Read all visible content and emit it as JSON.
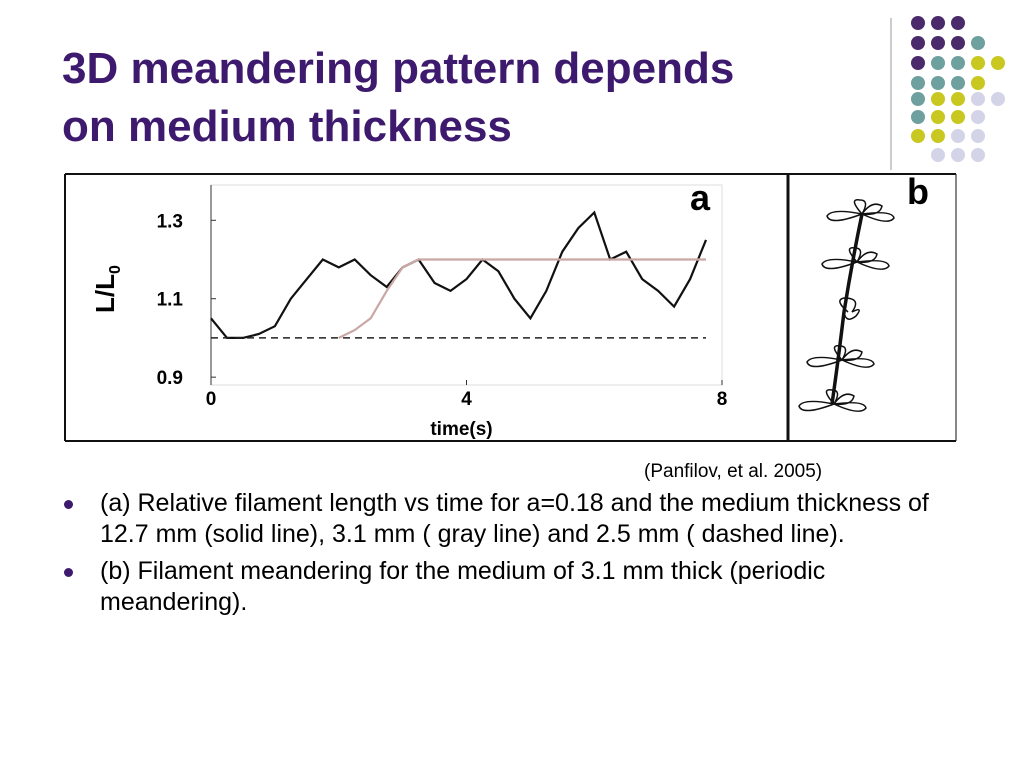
{
  "title_lines": [
    "3D meandering pattern depends",
    "on medium thickness"
  ],
  "chart_data": {
    "type": "line",
    "panel_label": "a",
    "x_label": "time(s)",
    "y_label": {
      "text": "L/L",
      "sub": "0"
    },
    "x": [
      0,
      0.25,
      0.5,
      0.75,
      1,
      1.25,
      1.5,
      1.75,
      2,
      2.25,
      2.5,
      2.75,
      3,
      3.25,
      3.5,
      3.75,
      4,
      4.25,
      4.5,
      4.75,
      5,
      5.25,
      5.5,
      5.75,
      6,
      6.25,
      6.5,
      6.75,
      7,
      7.25,
      7.5,
      7.75
    ],
    "series": [
      {
        "name": "solid",
        "color": "#111111",
        "dash": false,
        "values": [
          1.05,
          1.0,
          1.0,
          1.01,
          1.03,
          1.1,
          1.15,
          1.2,
          1.18,
          1.2,
          1.16,
          1.13,
          1.18,
          1.2,
          1.14,
          1.12,
          1.15,
          1.2,
          1.17,
          1.1,
          1.05,
          1.12,
          1.22,
          1.28,
          1.32,
          1.2,
          1.22,
          1.15,
          1.12,
          1.08,
          1.15,
          1.25
        ]
      },
      {
        "name": "gray",
        "color": "#c9a7a4",
        "dash": false,
        "values": [
          null,
          null,
          null,
          null,
          null,
          null,
          null,
          null,
          1.0,
          1.02,
          1.05,
          1.12,
          1.18,
          1.2,
          1.2,
          1.2,
          1.2,
          1.2,
          1.2,
          1.2,
          1.2,
          1.2,
          1.2,
          1.2,
          1.2,
          1.2,
          1.2,
          1.2,
          1.2,
          1.2,
          1.2,
          1.2
        ]
      },
      {
        "name": "dashed",
        "color": "#222222",
        "dash": true,
        "values": [
          1.0,
          1.0,
          1.0,
          1.0,
          1.0,
          1.0,
          1.0,
          1.0,
          1.0,
          1.0,
          1.0,
          1.0,
          1.0,
          1.0,
          1.0,
          1.0,
          1.0,
          1.0,
          1.0,
          1.0,
          1.0,
          1.0,
          1.0,
          1.0,
          1.0,
          1.0,
          1.0,
          1.0,
          1.0,
          1.0,
          1.0,
          1.0
        ]
      }
    ],
    "xlim": [
      0,
      8
    ],
    "xticks": [
      0,
      4,
      8
    ],
    "ylim": [
      0.88,
      1.39
    ],
    "yticks": [
      0.9,
      1.1,
      1.3
    ]
  },
  "panel_b_label": "b",
  "citation": "(Panfilov, et al. 2005)",
  "bullets": [
    "(a) Relative filament length vs time for a=0.18 and the medium thickness of 12.7 mm (solid line), 3.1 mm ( gray line) and 2.5 mm ( dashed line).",
    "(b) Filament meandering for the medium of 3.1 mm thick (periodic meandering)."
  ]
}
